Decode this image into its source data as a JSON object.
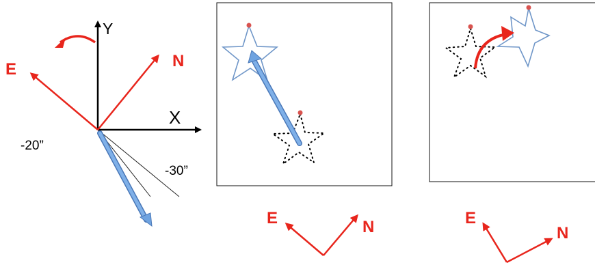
{
  "axes": {
    "x_label": "X",
    "y_label": "Y",
    "east_label": "E",
    "north_label": "N",
    "angle_left_label": "-20”",
    "angle_right_label": "-30”"
  },
  "panel_middle": {
    "east_label": "E",
    "north_label": "N"
  },
  "panel_right": {
    "east_label": "E",
    "north_label": "N"
  },
  "colors": {
    "red": "#e8251c",
    "blue_arrow": "#6fa3e0",
    "star_outline": "#6f96c8",
    "marker": "#d9534f"
  }
}
